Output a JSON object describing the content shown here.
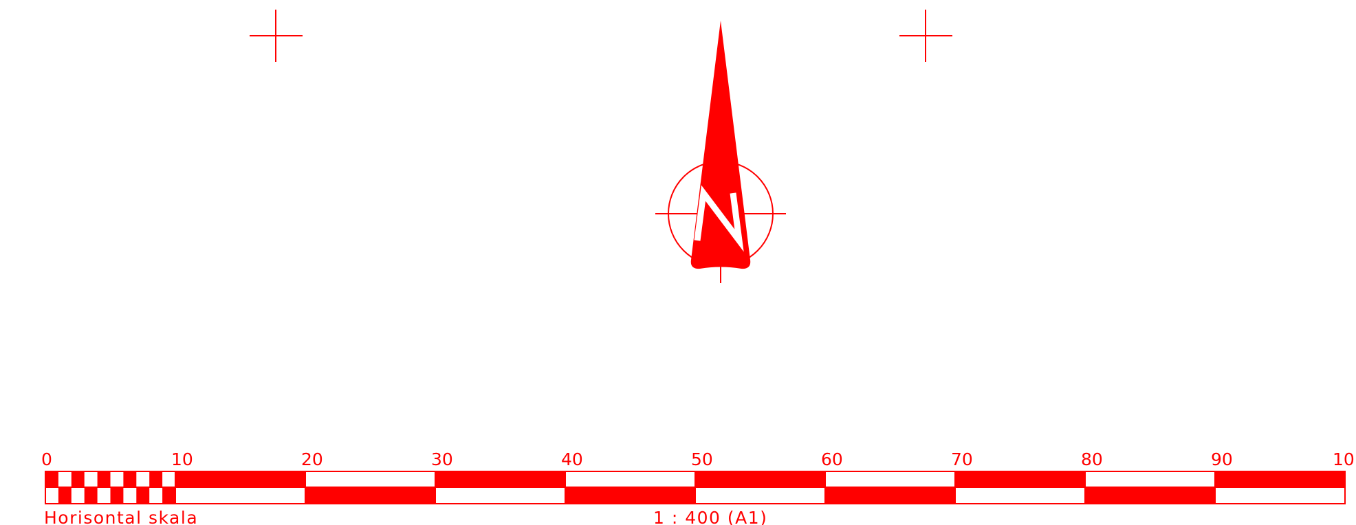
{
  "color": "#ff0000",
  "north_arrow": {
    "letter": "N",
    "icon": "north-arrow-icon"
  },
  "registration_marks": [
    "crosshair-icon",
    "crosshair-icon"
  ],
  "scale_bar": {
    "tick_labels": [
      "0",
      "10",
      "20",
      "30",
      "40",
      "50",
      "60",
      "70",
      "80",
      "90",
      "10"
    ],
    "label": "Horisontal skala",
    "ratio_text": "1 : 400 (A1)"
  }
}
